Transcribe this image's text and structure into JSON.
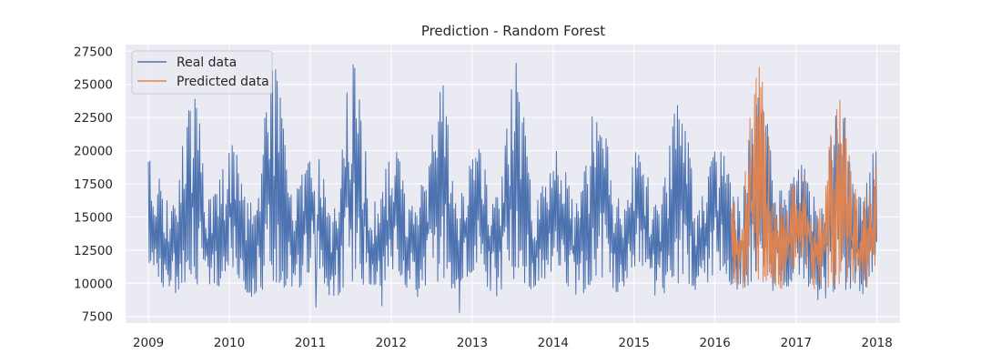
{
  "chart_data": {
    "type": "line",
    "title": "Prediction - Random Forest",
    "xlabel": "",
    "ylabel": "",
    "x_ticks": [
      "2009",
      "2010",
      "2011",
      "2012",
      "2013",
      "2014",
      "2015",
      "2016",
      "2017",
      "2018"
    ],
    "y_ticks": [
      "7500",
      "10000",
      "12500",
      "15000",
      "17500",
      "20000",
      "22500",
      "25000",
      "27500"
    ],
    "xlim": [
      "2008-09-20",
      "2018-04-15"
    ],
    "ylim": [
      7000,
      28000
    ],
    "grid": true,
    "legend_position": "top-left",
    "background_color": "#EAEAF2",
    "series": [
      {
        "name": "Real data",
        "color": "#4C72B0",
        "x_range": [
          "2009-01-01",
          "2018-01-01"
        ],
        "seasonal_envelope": [
          {
            "x": "2009-01-01",
            "low": 11500,
            "high": 19500
          },
          {
            "x": "2009-04-15",
            "low": 9000,
            "high": 16000
          },
          {
            "x": "2009-07-25",
            "low": 10000,
            "high": 24800
          },
          {
            "x": "2009-10-15",
            "low": 9300,
            "high": 16500
          },
          {
            "x": "2010-01-10",
            "low": 11000,
            "high": 20500
          },
          {
            "x": "2010-04-15",
            "low": 9000,
            "high": 16000
          },
          {
            "x": "2010-07-20",
            "low": 10000,
            "high": 26700
          },
          {
            "x": "2010-10-15",
            "low": 9300,
            "high": 16800
          },
          {
            "x": "2011-01-20",
            "low": 11000,
            "high": 20400
          },
          {
            "x": "2011-04-15",
            "low": 8900,
            "high": 16000
          },
          {
            "x": "2011-07-15",
            "low": 10000,
            "high": 27300
          },
          {
            "x": "2011-10-15",
            "low": 9200,
            "high": 16200
          },
          {
            "x": "2012-01-15",
            "low": 11000,
            "high": 20000
          },
          {
            "x": "2012-04-15",
            "low": 8900,
            "high": 16300
          },
          {
            "x": "2012-08-20",
            "low": 10000,
            "high": 25600
          },
          {
            "x": "2012-10-20",
            "low": 9300,
            "high": 16200
          },
          {
            "x": "2013-01-20",
            "low": 11000,
            "high": 20300
          },
          {
            "x": "2013-04-15",
            "low": 9000,
            "high": 16500
          },
          {
            "x": "2013-07-20",
            "low": 10000,
            "high": 26900
          },
          {
            "x": "2013-10-15",
            "low": 9500,
            "high": 17000
          },
          {
            "x": "2014-01-20",
            "low": 11000,
            "high": 20000
          },
          {
            "x": "2014-04-15",
            "low": 9000,
            "high": 16200
          },
          {
            "x": "2014-07-25",
            "low": 10000,
            "high": 24300
          },
          {
            "x": "2014-10-15",
            "low": 9300,
            "high": 16500
          },
          {
            "x": "2015-01-20",
            "low": 11000,
            "high": 20000
          },
          {
            "x": "2015-04-15",
            "low": 9000,
            "high": 16200
          },
          {
            "x": "2015-08-01",
            "low": 10000,
            "high": 24200
          },
          {
            "x": "2015-10-15",
            "low": 9300,
            "high": 16500
          },
          {
            "x": "2016-01-20",
            "low": 11000,
            "high": 20300
          },
          {
            "x": "2016-04-15",
            "low": 9300,
            "high": 16500
          },
          {
            "x": "2016-07-20",
            "low": 10000,
            "high": 25200
          },
          {
            "x": "2016-10-15",
            "low": 9300,
            "high": 17000
          },
          {
            "x": "2017-01-20",
            "low": 10500,
            "high": 19000
          },
          {
            "x": "2017-04-15",
            "low": 8700,
            "high": 16000
          },
          {
            "x": "2017-07-15",
            "low": 9500,
            "high": 24000
          },
          {
            "x": "2017-10-15",
            "low": 8800,
            "high": 16500
          },
          {
            "x": "2018-01-01",
            "low": 11000,
            "high": 20300
          }
        ],
        "notable_points": [
          {
            "x": "2011-01-27",
            "y": 8200
          },
          {
            "x": "2011-11-20",
            "y": 8300
          },
          {
            "x": "2012-11-05",
            "y": 7800
          }
        ]
      },
      {
        "name": "Predicted data",
        "color": "#DD8452",
        "x_range": [
          "2016-03-15",
          "2018-01-01"
        ],
        "seasonal_envelope": [
          {
            "x": "2016-03-15",
            "low": 10200,
            "high": 16500
          },
          {
            "x": "2016-04-15",
            "low": 9500,
            "high": 15800
          },
          {
            "x": "2016-07-15",
            "low": 10200,
            "high": 26500
          },
          {
            "x": "2016-10-15",
            "low": 9500,
            "high": 16500
          },
          {
            "x": "2017-01-20",
            "low": 11000,
            "high": 18500
          },
          {
            "x": "2017-04-15",
            "low": 9300,
            "high": 16000
          },
          {
            "x": "2017-07-10",
            "low": 9800,
            "high": 24100
          },
          {
            "x": "2017-10-15",
            "low": 9200,
            "high": 16500
          },
          {
            "x": "2018-01-01",
            "low": 10500,
            "high": 19000
          }
        ]
      }
    ]
  }
}
